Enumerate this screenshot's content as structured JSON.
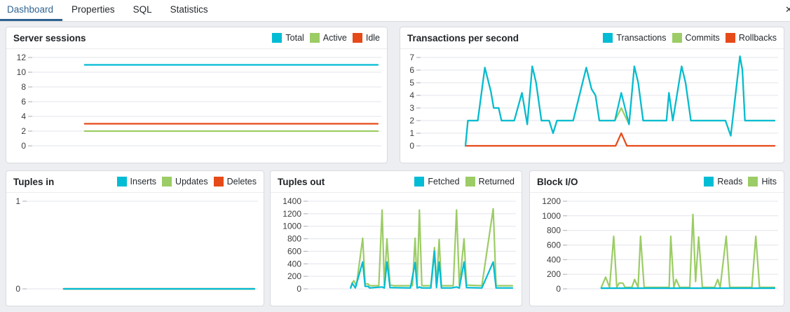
{
  "tabs": {
    "items": [
      {
        "label": "Dashboard",
        "active": true
      },
      {
        "label": "Properties",
        "active": false
      },
      {
        "label": "SQL",
        "active": false
      },
      {
        "label": "Statistics",
        "active": false
      }
    ],
    "close_glyph": "✕"
  },
  "colors": {
    "accent_tab": "#2e6391",
    "cyan": "#00bcd4",
    "green": "#9ccc65",
    "red": "#e64a19"
  },
  "charts": [
    {
      "type": "line",
      "title": "Server sessions",
      "ylim": [
        0,
        12
      ],
      "y_ticks": [
        0,
        2,
        4,
        6,
        8,
        10,
        12
      ],
      "grid": true,
      "legend_position": "top-right",
      "series": [
        {
          "name": "Total",
          "color": "#00bcd4",
          "z": 3,
          "points": [
            [
              0.15,
              11
            ],
            [
              1,
              11
            ]
          ]
        },
        {
          "name": "Active",
          "color": "#9ccc65",
          "z": 1,
          "points": [
            [
              0.15,
              2
            ],
            [
              1,
              2
            ]
          ]
        },
        {
          "name": "Idle",
          "color": "#e64a19",
          "z": 2,
          "points": [
            [
              0.15,
              3
            ],
            [
              1,
              3
            ]
          ]
        }
      ]
    },
    {
      "type": "line",
      "title": "Transactions per second",
      "ylim": [
        0,
        7
      ],
      "y_ticks": [
        0,
        1,
        2,
        3,
        4,
        5,
        6,
        7
      ],
      "grid": true,
      "legend_position": "top-right",
      "series": [
        {
          "name": "Transactions",
          "color": "#00bcd4",
          "z": 3,
          "points": [
            [
              0.125,
              0
            ],
            [
              0.132,
              2
            ],
            [
              0.16,
              2
            ],
            [
              0.18,
              6.2
            ],
            [
              0.197,
              4.3
            ],
            [
              0.205,
              3
            ],
            [
              0.219,
              3
            ],
            [
              0.227,
              2
            ],
            [
              0.263,
              2
            ],
            [
              0.285,
              4.2
            ],
            [
              0.3,
              1.7
            ],
            [
              0.314,
              6.3
            ],
            [
              0.325,
              5
            ],
            [
              0.34,
              2
            ],
            [
              0.362,
              2
            ],
            [
              0.373,
              1
            ],
            [
              0.384,
              2
            ],
            [
              0.43,
              2
            ],
            [
              0.467,
              6.2
            ],
            [
              0.482,
              4.5
            ],
            [
              0.493,
              4
            ],
            [
              0.504,
              2
            ],
            [
              0.548,
              2
            ],
            [
              0.566,
              4.2
            ],
            [
              0.588,
              1.7
            ],
            [
              0.603,
              6.3
            ],
            [
              0.614,
              5
            ],
            [
              0.628,
              2
            ],
            [
              0.694,
              2
            ],
            [
              0.701,
              4.2
            ],
            [
              0.712,
              2
            ],
            [
              0.737,
              6.3
            ],
            [
              0.748,
              5
            ],
            [
              0.763,
              2
            ],
            [
              0.861,
              2
            ],
            [
              0.876,
              0.8
            ],
            [
              0.902,
              7.1
            ],
            [
              0.909,
              6
            ],
            [
              0.916,
              2
            ],
            [
              1,
              2
            ]
          ]
        },
        {
          "name": "Commits",
          "color": "#9ccc65",
          "z": 1,
          "points": [
            [
              0.125,
              0
            ],
            [
              0.132,
              2
            ],
            [
              0.16,
              2
            ],
            [
              0.18,
              6.2
            ],
            [
              0.197,
              4.3
            ],
            [
              0.205,
              3
            ],
            [
              0.219,
              3
            ],
            [
              0.227,
              2
            ],
            [
              0.263,
              2
            ],
            [
              0.285,
              4.2
            ],
            [
              0.3,
              1.7
            ],
            [
              0.314,
              6.3
            ],
            [
              0.325,
              5
            ],
            [
              0.34,
              2
            ],
            [
              0.362,
              2
            ],
            [
              0.373,
              1
            ],
            [
              0.384,
              2
            ],
            [
              0.43,
              2
            ],
            [
              0.467,
              6.2
            ],
            [
              0.482,
              4.5
            ],
            [
              0.493,
              4
            ],
            [
              0.504,
              2
            ],
            [
              0.548,
              2
            ],
            [
              0.566,
              3
            ],
            [
              0.588,
              1.7
            ],
            [
              0.603,
              6.3
            ],
            [
              0.614,
              5
            ],
            [
              0.628,
              2
            ],
            [
              0.694,
              2
            ],
            [
              0.701,
              4.2
            ],
            [
              0.712,
              2
            ],
            [
              0.737,
              6.3
            ],
            [
              0.748,
              5
            ],
            [
              0.763,
              2
            ],
            [
              0.861,
              2
            ],
            [
              0.876,
              0.8
            ],
            [
              0.902,
              7.1
            ],
            [
              0.909,
              6
            ],
            [
              0.916,
              2
            ],
            [
              1,
              2
            ]
          ]
        },
        {
          "name": "Rollbacks",
          "color": "#e64a19",
          "z": 2,
          "points": [
            [
              0.125,
              0
            ],
            [
              0.55,
              0
            ],
            [
              0.566,
              1
            ],
            [
              0.582,
              0
            ],
            [
              1,
              0
            ]
          ]
        }
      ]
    },
    {
      "type": "line",
      "title": "Tuples in",
      "ylim": [
        0,
        1
      ],
      "y_ticks": [
        0,
        1
      ],
      "grid": true,
      "legend_position": "top-right",
      "series": [
        {
          "name": "Inserts",
          "color": "#00bcd4",
          "z": 3,
          "points": [
            [
              0.16,
              0
            ],
            [
              1,
              0
            ]
          ]
        },
        {
          "name": "Updates",
          "color": "#9ccc65",
          "z": 1,
          "points": [
            [
              0.16,
              0
            ],
            [
              1,
              0
            ]
          ]
        },
        {
          "name": "Deletes",
          "color": "#e64a19",
          "z": 2,
          "points": [
            [
              0.16,
              0
            ],
            [
              1,
              0
            ]
          ]
        }
      ]
    },
    {
      "type": "line",
      "title": "Tuples out",
      "ylim": [
        0,
        1400
      ],
      "y_ticks": [
        0,
        200,
        400,
        600,
        800,
        1000,
        1200,
        1400
      ],
      "grid": true,
      "legend_position": "top-right",
      "series": [
        {
          "name": "Fetched",
          "color": "#00bcd4",
          "z": 2,
          "points": [
            [
              0.207,
              15
            ],
            [
              0.215,
              90
            ],
            [
              0.23,
              15
            ],
            [
              0.266,
              430
            ],
            [
              0.278,
              40
            ],
            [
              0.292,
              40
            ],
            [
              0.3,
              15
            ],
            [
              0.361,
              30
            ],
            [
              0.372,
              15
            ],
            [
              0.385,
              430
            ],
            [
              0.4,
              20
            ],
            [
              0.5,
              15
            ],
            [
              0.523,
              420
            ],
            [
              0.533,
              15
            ],
            [
              0.544,
              30
            ],
            [
              0.556,
              15
            ],
            [
              0.6,
              15
            ],
            [
              0.618,
              600
            ],
            [
              0.628,
              20
            ],
            [
              0.641,
              430
            ],
            [
              0.652,
              15
            ],
            [
              0.7,
              15
            ],
            [
              0.726,
              30
            ],
            [
              0.74,
              15
            ],
            [
              0.763,
              430
            ],
            [
              0.775,
              20
            ],
            [
              0.85,
              15
            ],
            [
              0.906,
              430
            ],
            [
              0.92,
              15
            ],
            [
              1,
              15
            ]
          ]
        },
        {
          "name": "Returned",
          "color": "#9ccc65",
          "z": 1,
          "points": [
            [
              0.207,
              20
            ],
            [
              0.215,
              100
            ],
            [
              0.223,
              130
            ],
            [
              0.235,
              50
            ],
            [
              0.266,
              810
            ],
            [
              0.278,
              80
            ],
            [
              0.292,
              80
            ],
            [
              0.3,
              50
            ],
            [
              0.345,
              50
            ],
            [
              0.361,
              1260
            ],
            [
              0.372,
              50
            ],
            [
              0.385,
              800
            ],
            [
              0.4,
              60
            ],
            [
              0.42,
              50
            ],
            [
              0.51,
              50
            ],
            [
              0.523,
              810
            ],
            [
              0.533,
              50
            ],
            [
              0.544,
              1260
            ],
            [
              0.556,
              50
            ],
            [
              0.6,
              50
            ],
            [
              0.618,
              660
            ],
            [
              0.628,
              50
            ],
            [
              0.641,
              790
            ],
            [
              0.652,
              50
            ],
            [
              0.71,
              50
            ],
            [
              0.726,
              1260
            ],
            [
              0.74,
              50
            ],
            [
              0.763,
              800
            ],
            [
              0.775,
              60
            ],
            [
              0.85,
              50
            ],
            [
              0.906,
              1280
            ],
            [
              0.92,
              50
            ],
            [
              1,
              50
            ]
          ]
        }
      ]
    },
    {
      "type": "line",
      "title": "Block I/O",
      "ylim": [
        0,
        1200
      ],
      "y_ticks": [
        0,
        200,
        400,
        600,
        800,
        1000,
        1200
      ],
      "grid": true,
      "legend_position": "top-right",
      "series": [
        {
          "name": "Reads",
          "color": "#00bcd4",
          "z": 2,
          "points": [
            [
              0.162,
              10
            ],
            [
              1,
              10
            ]
          ]
        },
        {
          "name": "Hits",
          "color": "#9ccc65",
          "z": 1,
          "points": [
            [
              0.162,
              20
            ],
            [
              0.183,
              160
            ],
            [
              0.202,
              20
            ],
            [
              0.222,
              720
            ],
            [
              0.237,
              20
            ],
            [
              0.248,
              80
            ],
            [
              0.266,
              80
            ],
            [
              0.277,
              20
            ],
            [
              0.31,
              20
            ],
            [
              0.323,
              130
            ],
            [
              0.34,
              20
            ],
            [
              0.352,
              720
            ],
            [
              0.369,
              20
            ],
            [
              0.49,
              20
            ],
            [
              0.498,
              720
            ],
            [
              0.513,
              20
            ],
            [
              0.524,
              130
            ],
            [
              0.541,
              20
            ],
            [
              0.59,
              20
            ],
            [
              0.605,
              1020
            ],
            [
              0.618,
              100
            ],
            [
              0.633,
              710
            ],
            [
              0.651,
              20
            ],
            [
              0.71,
              20
            ],
            [
              0.725,
              130
            ],
            [
              0.737,
              20
            ],
            [
              0.766,
              720
            ],
            [
              0.783,
              20
            ],
            [
              0.89,
              20
            ],
            [
              0.909,
              720
            ],
            [
              0.927,
              20
            ],
            [
              1,
              20
            ]
          ]
        }
      ]
    }
  ]
}
